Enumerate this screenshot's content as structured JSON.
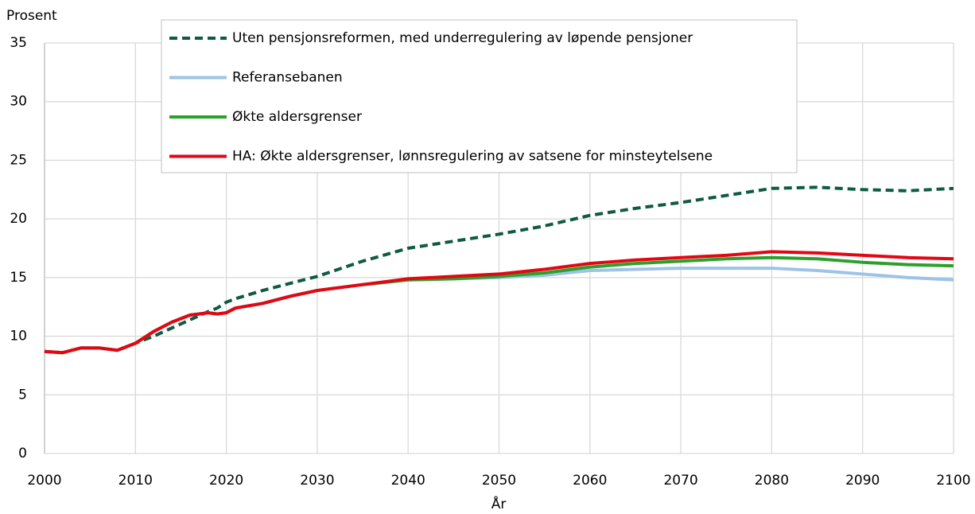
{
  "chart_data": {
    "type": "line",
    "y_label": "Prosent",
    "x_label": "År",
    "x": [
      2000,
      2002,
      2004,
      2006,
      2008,
      2010,
      2012,
      2014,
      2016,
      2018,
      2019,
      2020,
      2021,
      2024,
      2027,
      2030,
      2035,
      2040,
      2045,
      2050,
      2055,
      2060,
      2065,
      2070,
      2075,
      2080,
      2085,
      2090,
      2095,
      2100
    ],
    "series": [
      {
        "name": "Uten pensjonsreformen, med underregulering av løpende pensjoner",
        "color": "#0e5a43",
        "line_style": "dashed",
        "values": [
          8.7,
          8.6,
          9.0,
          9.0,
          8.8,
          9.4,
          10.0,
          10.7,
          11.4,
          12.1,
          12.4,
          12.9,
          13.2,
          13.9,
          14.5,
          15.1,
          16.4,
          17.5,
          18.1,
          18.7,
          19.4,
          20.3,
          20.9,
          21.4,
          22.0,
          22.6,
          22.7,
          22.5,
          22.4,
          22.6
        ]
      },
      {
        "name": "Referansebanen",
        "color": "#9dc3e6",
        "line_style": "solid",
        "values": [
          8.7,
          8.6,
          9.0,
          9.0,
          8.8,
          9.4,
          10.4,
          11.2,
          11.8,
          12.0,
          11.9,
          12.0,
          12.4,
          12.8,
          13.4,
          13.9,
          14.4,
          14.8,
          14.9,
          15.0,
          15.2,
          15.6,
          15.7,
          15.8,
          15.8,
          15.8,
          15.6,
          15.3,
          15.0,
          14.8
        ]
      },
      {
        "name": "Økte aldersgrenser",
        "color": "#2ca02c",
        "line_style": "solid",
        "values": [
          8.7,
          8.6,
          9.0,
          9.0,
          8.8,
          9.4,
          10.4,
          11.2,
          11.8,
          12.0,
          11.9,
          12.0,
          12.4,
          12.8,
          13.4,
          13.9,
          14.4,
          14.8,
          14.9,
          15.1,
          15.4,
          15.9,
          16.2,
          16.4,
          16.6,
          16.7,
          16.6,
          16.3,
          16.1,
          16.0
        ]
      },
      {
        "name": "HA: Økte aldersgrenser, lønnsregulering av satsene for minsteytelsene",
        "color": "#e30613",
        "line_style": "solid",
        "values": [
          8.7,
          8.6,
          9.0,
          9.0,
          8.8,
          9.4,
          10.4,
          11.2,
          11.8,
          12.0,
          11.9,
          12.0,
          12.4,
          12.8,
          13.4,
          13.9,
          14.4,
          14.9,
          15.1,
          15.3,
          15.7,
          16.2,
          16.5,
          16.7,
          16.9,
          17.2,
          17.1,
          16.9,
          16.7,
          16.6
        ]
      }
    ],
    "xlim": [
      2000,
      2100
    ],
    "xticks": [
      2000,
      2010,
      2020,
      2030,
      2040,
      2050,
      2060,
      2070,
      2080,
      2090,
      2100
    ],
    "ylim": [
      0,
      35
    ],
    "yticks": [
      0,
      5,
      10,
      15,
      20,
      25,
      30,
      35
    ],
    "grid": true,
    "legend": "top"
  }
}
